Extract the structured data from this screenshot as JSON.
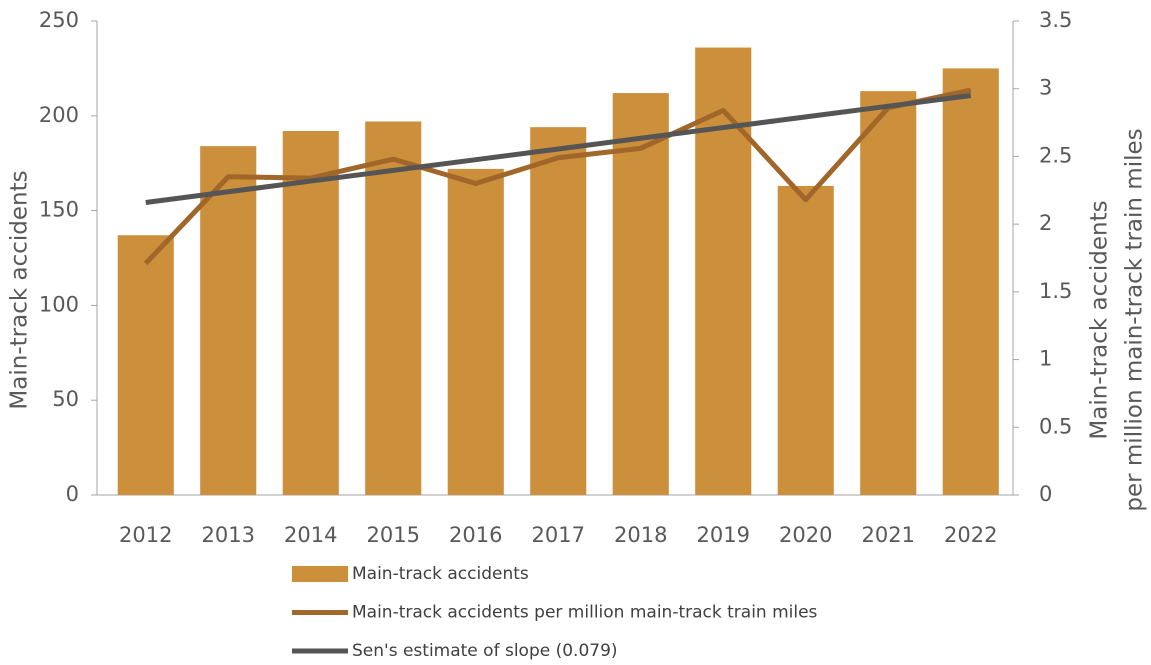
{
  "chart_data": {
    "type": "bar",
    "categories": [
      "2012",
      "2013",
      "2014",
      "2015",
      "2016",
      "2017",
      "2018",
      "2019",
      "2020",
      "2021",
      "2022"
    ],
    "ylabel": "Main-track accidents",
    "y2label": [
      "Main-track accidents",
      "per million main-track train miles"
    ],
    "ylim": [
      0,
      250
    ],
    "yticks": [
      0,
      50,
      100,
      150,
      200,
      250
    ],
    "y2lim": [
      0,
      3.5
    ],
    "y2ticks": [
      0,
      0.5,
      1,
      1.5,
      2,
      2.5,
      3,
      3.5
    ],
    "series": [
      {
        "name": "Main-track accidents",
        "type": "bar",
        "color": "#cc8f3b",
        "values": [
          137,
          184,
          192,
          197,
          172,
          194,
          212,
          236,
          163,
          213,
          225
        ]
      },
      {
        "name": "Main-track accidents per million main-track train miles",
        "type": "line",
        "axis": "y2",
        "color": "#a0662a",
        "values": [
          1.71,
          2.35,
          2.34,
          2.48,
          2.3,
          2.49,
          2.56,
          2.84,
          2.18,
          2.86,
          2.99
        ]
      },
      {
        "name": "Sen's estimate of slope (0.079)",
        "type": "line",
        "axis": "y2",
        "color": "#555555",
        "values": [
          2.16,
          2.239,
          2.318,
          2.397,
          2.476,
          2.555,
          2.634,
          2.713,
          2.792,
          2.871,
          2.95
        ]
      }
    ]
  }
}
